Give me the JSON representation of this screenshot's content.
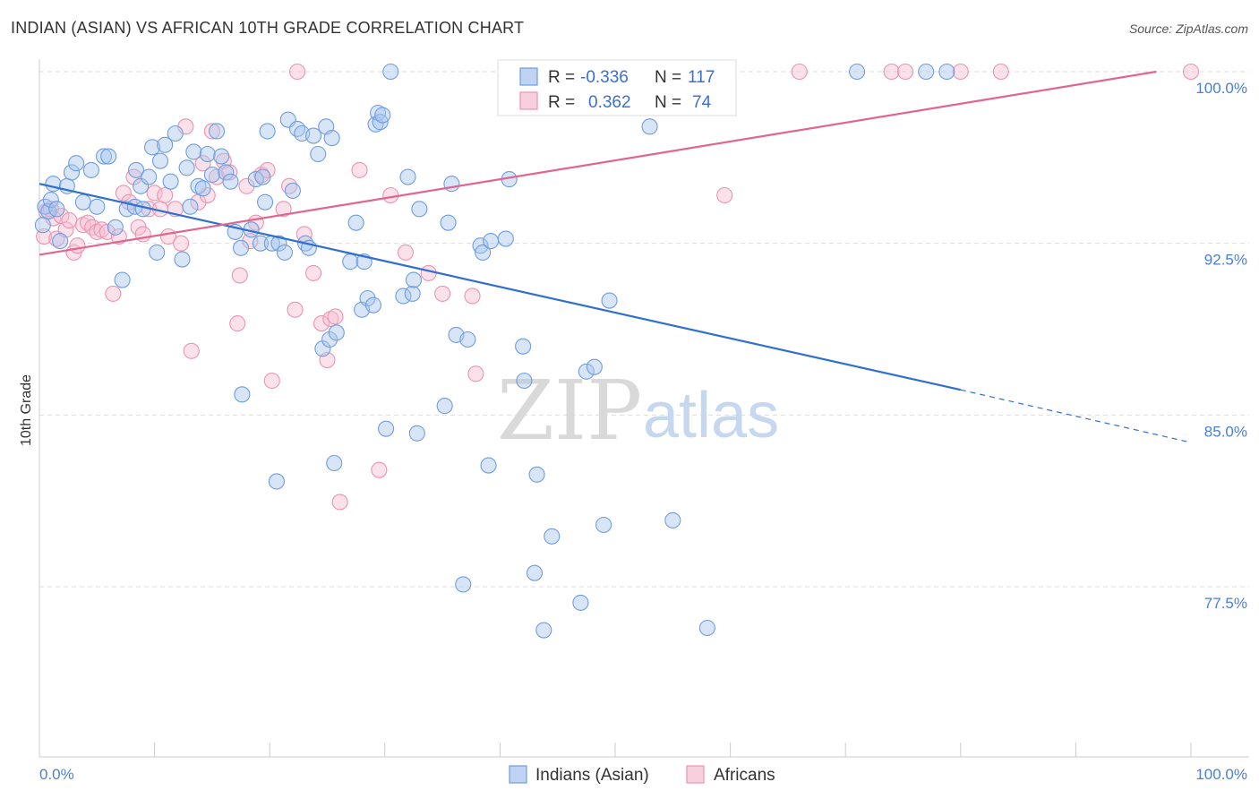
{
  "header": {
    "title": "INDIAN (ASIAN) VS AFRICAN 10TH GRADE CORRELATION CHART",
    "source": "Source: ZipAtlas.com"
  },
  "watermark": {
    "zip": "ZIP",
    "atlas": "atlas"
  },
  "legend_top": {
    "r_label": "R =",
    "n_label": "N =",
    "rows": [
      {
        "series": "Indians (Asian)",
        "r": "-0.336",
        "n": "117"
      },
      {
        "series": "Africans",
        "r": "0.362",
        "n": "74"
      }
    ]
  },
  "colors": {
    "blue_fill": "#a9c6ee",
    "blue_stroke": "#6f9de0",
    "blue_line": "#2f6fd1",
    "pink_fill": "#f6bfd0",
    "pink_stroke": "#ec93b0",
    "pink_line": "#e0658f",
    "grid": "#dddddd",
    "tick_text": "#4a7fd4"
  },
  "chart_data": {
    "type": "scatter",
    "title": "INDIAN (ASIAN) VS AFRICAN 10TH GRADE CORRELATION CHART",
    "xlabel": "",
    "ylabel": "10th Grade",
    "xlim": [
      0,
      100
    ],
    "ylim": [
      70.5,
      101.5
    ],
    "x_tick_labels": [
      "0.0%",
      "100.0%"
    ],
    "y_ticks": [
      77.5,
      85.0,
      92.5,
      100.0
    ],
    "y_tick_labels": [
      "77.5%",
      "85.0%",
      "92.5%",
      "100.0%"
    ],
    "grid": true,
    "legend_position": "top-center",
    "series": [
      {
        "name": "Indians (Asian)",
        "color": "#6f9de0",
        "r": -0.336,
        "n": 117,
        "trend": {
          "x": [
            0,
            80,
            100
          ],
          "y": [
            95.1,
            86.1,
            83.8
          ],
          "dashed_from_x": 80
        },
        "points": [
          [
            0.3,
            93.3
          ],
          [
            0.5,
            94.1
          ],
          [
            0.8,
            93.9
          ],
          [
            1.0,
            94.4
          ],
          [
            1.2,
            95.1
          ],
          [
            1.5,
            94.0
          ],
          [
            1.8,
            92.6
          ],
          [
            2.4,
            95.0
          ],
          [
            2.8,
            95.6
          ],
          [
            3.2,
            96.0
          ],
          [
            3.8,
            94.3
          ],
          [
            4.5,
            95.7
          ],
          [
            5.0,
            94.1
          ],
          [
            5.6,
            96.3
          ],
          [
            6.0,
            96.3
          ],
          [
            6.6,
            93.2
          ],
          [
            7.2,
            90.9
          ],
          [
            7.6,
            94.0
          ],
          [
            8.3,
            94.1
          ],
          [
            8.4,
            95.7
          ],
          [
            8.8,
            95.0
          ],
          [
            9.0,
            94.0
          ],
          [
            9.5,
            95.4
          ],
          [
            9.8,
            96.7
          ],
          [
            10.2,
            92.1
          ],
          [
            10.5,
            96.1
          ],
          [
            10.9,
            96.8
          ],
          [
            11.4,
            95.2
          ],
          [
            11.8,
            97.3
          ],
          [
            12.4,
            91.8
          ],
          [
            12.8,
            95.8
          ],
          [
            13.1,
            94.1
          ],
          [
            13.4,
            96.5
          ],
          [
            13.8,
            95.0
          ],
          [
            14.2,
            94.9
          ],
          [
            14.6,
            96.4
          ],
          [
            15.0,
            95.5
          ],
          [
            15.4,
            97.4
          ],
          [
            15.8,
            96.3
          ],
          [
            16.2,
            95.6
          ],
          [
            16.6,
            95.2
          ],
          [
            17.0,
            93.0
          ],
          [
            17.5,
            92.3
          ],
          [
            17.6,
            85.9
          ],
          [
            18.4,
            93.1
          ],
          [
            18.8,
            95.3
          ],
          [
            19.2,
            92.5
          ],
          [
            19.4,
            95.4
          ],
          [
            19.6,
            94.3
          ],
          [
            19.8,
            97.4
          ],
          [
            20.2,
            92.5
          ],
          [
            20.6,
            82.1
          ],
          [
            20.8,
            92.5
          ],
          [
            21.3,
            92.1
          ],
          [
            21.6,
            97.9
          ],
          [
            22.0,
            94.8
          ],
          [
            22.4,
            97.5
          ],
          [
            22.8,
            97.3
          ],
          [
            23.1,
            92.5
          ],
          [
            23.4,
            92.3
          ],
          [
            23.8,
            97.2
          ],
          [
            24.2,
            96.4
          ],
          [
            24.6,
            87.9
          ],
          [
            24.9,
            97.6
          ],
          [
            25.2,
            88.3
          ],
          [
            25.4,
            97.1
          ],
          [
            25.6,
            82.9
          ],
          [
            25.8,
            88.6
          ],
          [
            27.0,
            91.7
          ],
          [
            27.5,
            93.4
          ],
          [
            28.0,
            89.6
          ],
          [
            28.2,
            91.7
          ],
          [
            28.5,
            90.1
          ],
          [
            29.0,
            89.8
          ],
          [
            29.2,
            97.7
          ],
          [
            29.4,
            98.2
          ],
          [
            29.6,
            97.8
          ],
          [
            29.8,
            98.1
          ],
          [
            30.1,
            84.4
          ],
          [
            30.5,
            100.0
          ],
          [
            31.6,
            90.2
          ],
          [
            32.0,
            95.4
          ],
          [
            32.4,
            90.3
          ],
          [
            32.5,
            90.9
          ],
          [
            32.8,
            84.2
          ],
          [
            33.0,
            94.0
          ],
          [
            35.5,
            93.4
          ],
          [
            35.2,
            85.4
          ],
          [
            35.8,
            95.1
          ],
          [
            36.2,
            88.5
          ],
          [
            36.8,
            77.6
          ],
          [
            37.2,
            88.3
          ],
          [
            38.3,
            92.4
          ],
          [
            38.5,
            92.1
          ],
          [
            39.0,
            82.8
          ],
          [
            39.2,
            92.6
          ],
          [
            40.5,
            92.7
          ],
          [
            40.8,
            95.3
          ],
          [
            42.0,
            88.0
          ],
          [
            42.1,
            86.5
          ],
          [
            43.0,
            78.1
          ],
          [
            43.2,
            82.4
          ],
          [
            43.8,
            75.6
          ],
          [
            44.5,
            79.7
          ],
          [
            46.0,
            100.0
          ],
          [
            47.0,
            76.8
          ],
          [
            47.5,
            86.9
          ],
          [
            48.2,
            87.1
          ],
          [
            49.0,
            80.2
          ],
          [
            49.5,
            90.0
          ],
          [
            50.3,
            100.0
          ],
          [
            53.0,
            97.6
          ],
          [
            55.0,
            80.4
          ],
          [
            58.0,
            75.7
          ],
          [
            71.0,
            100.0
          ],
          [
            77.0,
            100.0
          ],
          [
            78.8,
            100.0
          ]
        ]
      },
      {
        "name": "Africans",
        "color": "#ec93b0",
        "r": 0.362,
        "n": 74,
        "trend": {
          "x": [
            0,
            97
          ],
          "y": [
            92.0,
            100.0
          ]
        },
        "points": [
          [
            0.4,
            92.8
          ],
          [
            0.6,
            93.9
          ],
          [
            1.0,
            94.0
          ],
          [
            1.2,
            93.6
          ],
          [
            1.5,
            92.7
          ],
          [
            1.9,
            93.7
          ],
          [
            2.3,
            93.1
          ],
          [
            2.6,
            93.5
          ],
          [
            3.0,
            92.1
          ],
          [
            3.3,
            92.4
          ],
          [
            3.8,
            93.3
          ],
          [
            4.2,
            93.4
          ],
          [
            4.6,
            93.2
          ],
          [
            5.0,
            93.0
          ],
          [
            5.4,
            93.1
          ],
          [
            5.9,
            93.0
          ],
          [
            6.4,
            90.3
          ],
          [
            6.9,
            92.8
          ],
          [
            7.3,
            94.7
          ],
          [
            7.8,
            94.3
          ],
          [
            8.2,
            95.4
          ],
          [
            8.6,
            93.2
          ],
          [
            9.0,
            92.9
          ],
          [
            9.5,
            94.0
          ],
          [
            10.0,
            94.7
          ],
          [
            10.5,
            94.0
          ],
          [
            10.9,
            94.6
          ],
          [
            11.2,
            92.8
          ],
          [
            11.8,
            94.0
          ],
          [
            12.3,
            92.5
          ],
          [
            12.7,
            97.6
          ],
          [
            13.2,
            87.8
          ],
          [
            13.8,
            94.3
          ],
          [
            14.2,
            96.0
          ],
          [
            14.6,
            94.6
          ],
          [
            15.0,
            97.4
          ],
          [
            15.4,
            95.4
          ],
          [
            16.0,
            96.1
          ],
          [
            16.5,
            95.6
          ],
          [
            17.2,
            89.0
          ],
          [
            17.4,
            91.1
          ],
          [
            18.0,
            95.0
          ],
          [
            18.3,
            92.6
          ],
          [
            18.8,
            93.4
          ],
          [
            19.3,
            95.5
          ],
          [
            19.8,
            95.7
          ],
          [
            20.2,
            86.5
          ],
          [
            21.2,
            94.0
          ],
          [
            21.7,
            95.0
          ],
          [
            22.2,
            89.6
          ],
          [
            23.0,
            92.9
          ],
          [
            23.8,
            91.2
          ],
          [
            24.5,
            89.0
          ],
          [
            25.0,
            87.4
          ],
          [
            25.3,
            89.2
          ],
          [
            25.7,
            89.3
          ],
          [
            26.1,
            81.2
          ],
          [
            27.8,
            95.7
          ],
          [
            29.5,
            82.6
          ],
          [
            30.5,
            94.6
          ],
          [
            31.8,
            92.1
          ],
          [
            33.8,
            91.2
          ],
          [
            35.0,
            90.3
          ],
          [
            37.6,
            90.2
          ],
          [
            37.9,
            86.8
          ],
          [
            47.0,
            100.0
          ],
          [
            59.5,
            94.6
          ],
          [
            66.0,
            100.0
          ],
          [
            74.0,
            100.0
          ],
          [
            75.2,
            100.0
          ],
          [
            80.0,
            100.0
          ],
          [
            83.5,
            100.0
          ],
          [
            100.0,
            100.0
          ],
          [
            22.4,
            100.0
          ]
        ]
      }
    ],
    "bottom_legend": [
      "Indians (Asian)",
      "Africans"
    ]
  }
}
